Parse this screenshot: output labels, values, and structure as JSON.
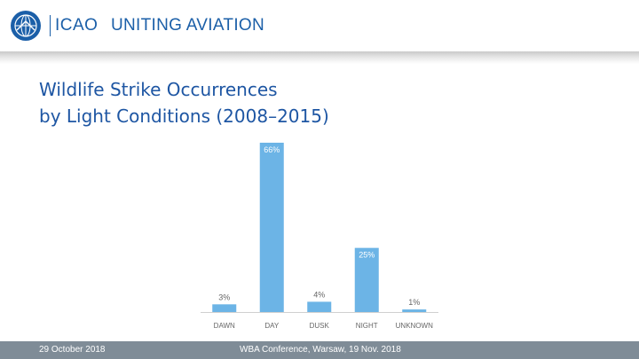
{
  "header": {
    "org": "ICAO",
    "tagline": "UNITING AVIATION",
    "emblem_icon": "icao-emblem-icon"
  },
  "slide": {
    "title_line1": "Wildlife Strike Occurrences",
    "title_line2": "by Light Conditions (2008–2015)"
  },
  "chart_data": {
    "type": "bar",
    "categories": [
      "DAWN",
      "DAY",
      "DUSK",
      "NIGHT",
      "UNKNOWN"
    ],
    "values": [
      3,
      66,
      4,
      25,
      1
    ],
    "data_labels": [
      "3%",
      "66%",
      "4%",
      "25%",
      "1%"
    ],
    "ylim": [
      0,
      66
    ],
    "bar_color": "#6cb4e6",
    "grid": false,
    "legend": "none"
  },
  "footer": {
    "date": "29 October 2018",
    "conference": "WBA Conference, Warsaw, 19 Nov. 2018"
  },
  "colors": {
    "brand_blue": "#1b5fa8",
    "title_blue": "#1e56a3",
    "footer_gray": "#7f8c97"
  }
}
